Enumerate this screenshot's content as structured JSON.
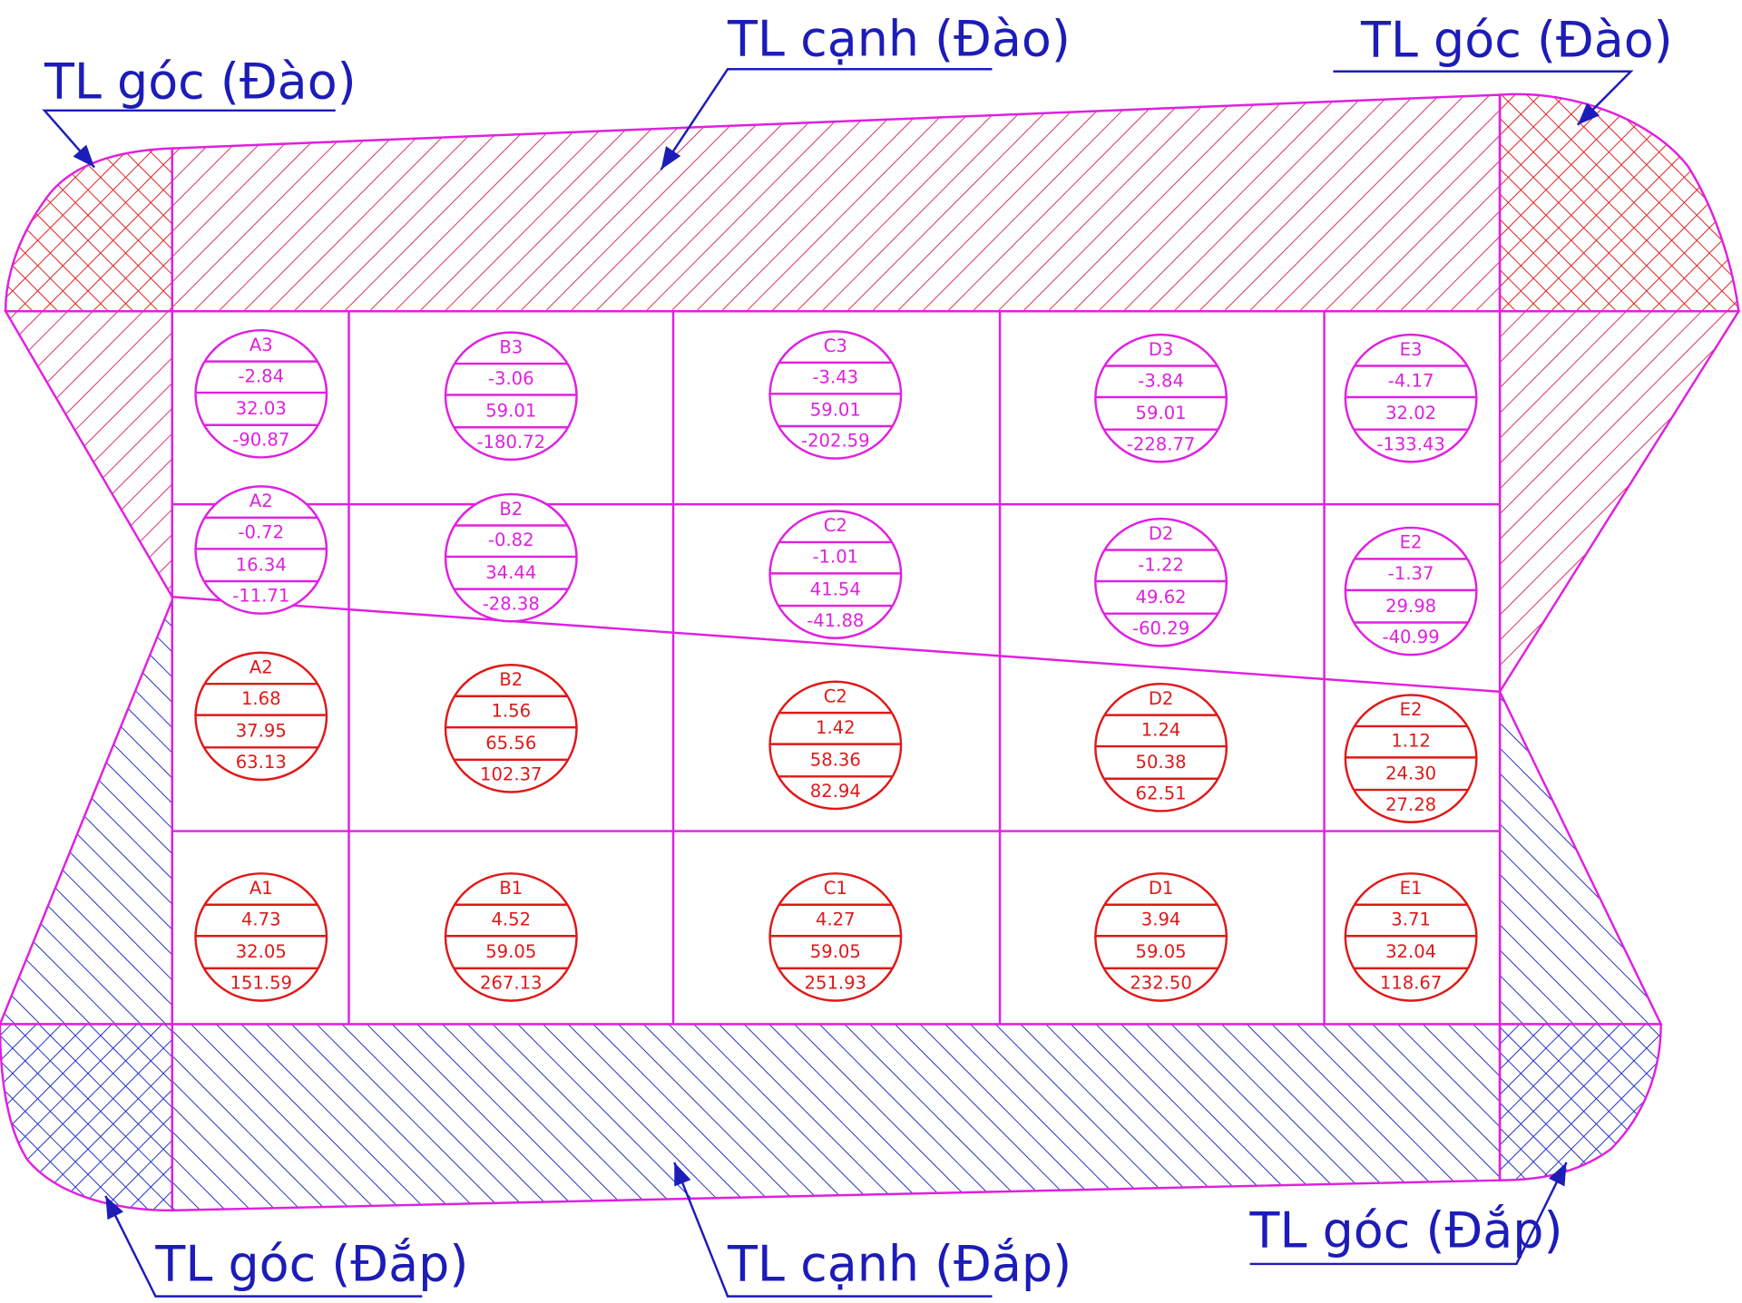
{
  "callouts": [
    {
      "label": "TL góc (Đào)"
    },
    {
      "label": "TL cạnh (Đào)"
    },
    {
      "label": "TL góc (Đào)"
    },
    {
      "label": "TL góc (Đắp)"
    },
    {
      "label": "TL cạnh (Đắp)"
    },
    {
      "label": "TL góc (Đắp)"
    }
  ],
  "cut_cells": [
    {
      "label": "A3",
      "values": [
        "-2.84",
        "32.03",
        "-90.87"
      ]
    },
    {
      "label": "B3",
      "values": [
        "-3.06",
        "59.01",
        "-180.72"
      ]
    },
    {
      "label": "C3",
      "values": [
        "-3.43",
        "59.01",
        "-202.59"
      ]
    },
    {
      "label": "D3",
      "values": [
        "-3.84",
        "59.01",
        "-228.77"
      ]
    },
    {
      "label": "E3",
      "values": [
        "-4.17",
        "32.02",
        "-133.43"
      ]
    },
    {
      "label": "A2",
      "values": [
        "-0.72",
        "16.34",
        "-11.71"
      ]
    },
    {
      "label": "B2",
      "values": [
        "-0.82",
        "34.44",
        "-28.38"
      ]
    },
    {
      "label": "C2",
      "values": [
        "-1.01",
        "41.54",
        "-41.88"
      ]
    },
    {
      "label": "D2",
      "values": [
        "-1.22",
        "49.62",
        "-60.29"
      ]
    },
    {
      "label": "E2",
      "values": [
        "-1.37",
        "29.98",
        "-40.99"
      ]
    }
  ],
  "fill_cells": [
    {
      "label": "A2",
      "values": [
        "1.68",
        "37.95",
        "63.13"
      ]
    },
    {
      "label": "B2",
      "values": [
        "1.56",
        "65.56",
        "102.37"
      ]
    },
    {
      "label": "C2",
      "values": [
        "1.42",
        "58.36",
        "82.94"
      ]
    },
    {
      "label": "D2",
      "values": [
        "1.24",
        "50.38",
        "62.51"
      ]
    },
    {
      "label": "E2",
      "values": [
        "1.12",
        "24.30",
        "27.28"
      ]
    },
    {
      "label": "A1",
      "values": [
        "4.73",
        "32.05",
        "151.59"
      ]
    },
    {
      "label": "B1",
      "values": [
        "4.52",
        "59.05",
        "267.13"
      ]
    },
    {
      "label": "C1",
      "values": [
        "4.27",
        "59.05",
        "251.93"
      ]
    },
    {
      "label": "D1",
      "values": [
        "3.94",
        "59.05",
        "232.50"
      ]
    },
    {
      "label": "E1",
      "values": [
        "3.71",
        "32.04",
        "118.67"
      ]
    }
  ]
}
